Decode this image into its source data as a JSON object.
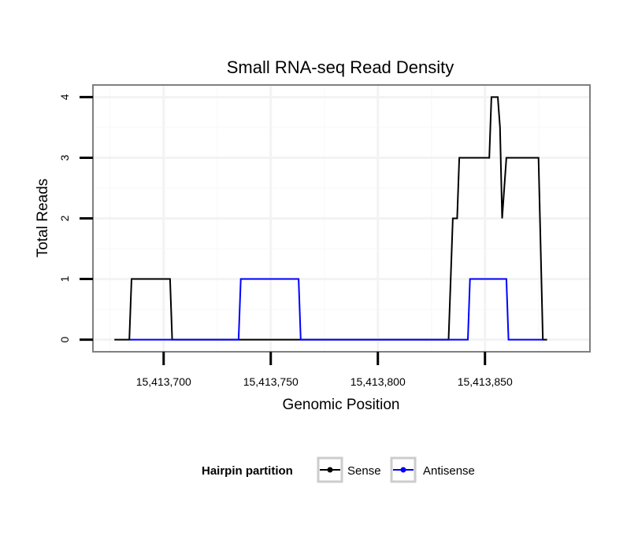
{
  "chart_data": {
    "type": "line",
    "title": "Small RNA-seq Read Density",
    "xlabel": "Genomic Position",
    "ylabel": "Total Reads",
    "xlim": [
      15413667,
      15413899
    ],
    "ylim": [
      -0.2,
      4.2
    ],
    "xticks": [
      15413700,
      15413750,
      15413800,
      15413850
    ],
    "xtick_labels": [
      "15,413,700",
      "15,413,750",
      "15,413,800",
      "15,413,850"
    ],
    "yticks": [
      0,
      1,
      2,
      3,
      4
    ],
    "ytick_labels": [
      "0",
      "1",
      "2",
      "3",
      "4"
    ],
    "grid": true,
    "legend": {
      "title": "Hairpin partition",
      "position": "bottom",
      "entries": [
        "Sense",
        "Antisense"
      ]
    },
    "series": [
      {
        "name": "Sense",
        "color": "#000000",
        "x": [
          15413677,
          15413684,
          15413685,
          15413703,
          15413704,
          15413833,
          15413835,
          15413836,
          15413837,
          15413838,
          15413852,
          15413853,
          15413856,
          15413857,
          15413858,
          15413860,
          15413875,
          15413877,
          15413879
        ],
        "y": [
          0,
          0,
          1,
          1,
          0,
          0,
          2,
          2,
          2,
          3,
          3,
          4,
          4,
          3.5,
          2,
          3,
          3,
          0,
          0
        ]
      },
      {
        "name": "Antisense",
        "color": "#0000ff",
        "x": [
          15413684,
          15413735,
          15413736,
          15413763,
          15413764,
          15413842,
          15413843,
          15413860,
          15413861,
          15413877
        ],
        "y": [
          0,
          0,
          1,
          1,
          0,
          0,
          1,
          1,
          0,
          0
        ]
      }
    ]
  }
}
